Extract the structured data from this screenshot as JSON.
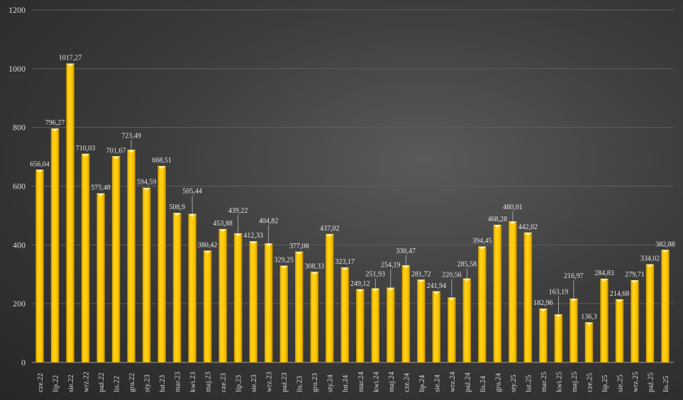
{
  "chart_data": {
    "type": "bar",
    "title": "",
    "xlabel": "",
    "ylabel": "",
    "ylim": [
      0,
      1200
    ],
    "yticks": [
      0,
      200,
      400,
      600,
      800,
      1000,
      1200
    ],
    "grid": true,
    "legend": "none",
    "bar_color": "#FFC800",
    "categories": [
      "cze.22",
      "lip.22",
      "sie.22",
      "wrz.22",
      "paź.22",
      "lis.22",
      "gru.22",
      "sty.23",
      "lut.23",
      "mar.23",
      "kwi.23",
      "maj.23",
      "cze.23",
      "lip.23",
      "sie.23",
      "wrz.23",
      "paź.23",
      "lis.23",
      "gru.23",
      "sty.24",
      "lut.24",
      "mar.24",
      "kwi.24",
      "maj.24",
      "cze.24",
      "lip.24",
      "sie.24",
      "wrz.24",
      "paź.24",
      "lis.24",
      "gru.24",
      "sty.25",
      "lut.25",
      "mar.25",
      "kwi.25",
      "maj.25",
      "cze.25",
      "lip.25",
      "sie.25",
      "wrz.25",
      "paź.25",
      "lis.25"
    ],
    "values": [
      656.04,
      796.27,
      1017.27,
      710.03,
      575.48,
      701.67,
      723.49,
      594.59,
      668.51,
      508.9,
      505.44,
      380.42,
      453.88,
      439.22,
      412.33,
      404.82,
      329.25,
      377.08,
      308.33,
      437.02,
      323.17,
      249.12,
      251.93,
      254.19,
      330.47,
      281.72,
      241.94,
      220.56,
      285.58,
      394.45,
      468.28,
      480.01,
      442.02,
      182.96,
      163.19,
      216.97,
      136.3,
      284.83,
      214.68,
      279.71,
      334.02,
      382.88
    ],
    "data_labels": [
      "656,04",
      "796,27",
      "1017,27",
      "710,03",
      "575,48",
      "701,67",
      "723,49",
      "594,59",
      "668,51",
      "508,9",
      "505,44",
      "380,42",
      "453,88",
      "439,22",
      "412,33",
      "404,82",
      "329,25",
      "377,08",
      "308,33",
      "437,02",
      "323,17",
      "249,12",
      "251,93",
      "254,19",
      "330,47",
      "281,72",
      "241,94",
      "220,56",
      "285,58",
      "394,45",
      "468,28",
      "480,01",
      "442,02",
      "182,96",
      "163,19",
      "216,97",
      "136,3",
      "284,83",
      "214,68",
      "279,71",
      "334,02",
      "382,88"
    ]
  }
}
